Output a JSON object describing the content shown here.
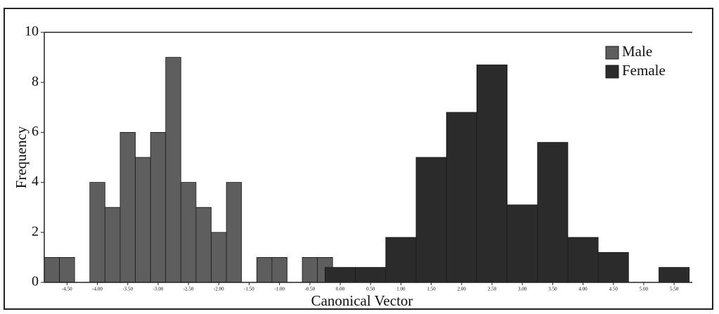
{
  "chart_data": {
    "type": "histogram",
    "xlabel": "Canonical Vector",
    "ylabel": "Frequency",
    "series": [
      {
        "name": "Male",
        "color": "#5e5e5e",
        "bins": [
          -4.875,
          -4.625,
          -4.375,
          -4.125,
          -3.875,
          -3.625,
          -3.375,
          -3.125,
          -2.875,
          -2.625,
          -2.375,
          -2.125,
          -1.875,
          -1.625,
          -1.375,
          -1.125,
          -0.875,
          -0.625,
          -0.375,
          -0.125
        ],
        "values": [
          1,
          1,
          0,
          4,
          3,
          6,
          5,
          6,
          9,
          4,
          3,
          2,
          4,
          0,
          1,
          1,
          0,
          1,
          1
        ]
      },
      {
        "name": "Female",
        "color": "#2b2b2b",
        "bins": [
          -0.25,
          0.25,
          0.75,
          1.25,
          1.75,
          2.25,
          2.75,
          3.25,
          3.75,
          4.25,
          4.75,
          5.25,
          5.75
        ],
        "values": [
          0.6,
          0.6,
          1.8,
          5,
          6.8,
          8.7,
          3.1,
          5.6,
          1.8,
          1.2,
          0,
          0.6
        ]
      }
    ],
    "xlim": [
      -4.875,
      5.8
    ],
    "ylim": [
      0,
      10
    ],
    "xticks": [
      {
        "value": -4.5,
        "label": "-4.50"
      },
      {
        "value": -4,
        "label": "-4.00"
      },
      {
        "value": -3.5,
        "label": "-3.50"
      },
      {
        "value": -3,
        "label": "-3.00"
      },
      {
        "value": -2.5,
        "label": "-2.50"
      },
      {
        "value": -2,
        "label": "-2.00"
      },
      {
        "value": -1.5,
        "label": "-1.50"
      },
      {
        "value": -1,
        "label": "-1.00"
      },
      {
        "value": -0.5,
        "label": "-0.50"
      },
      {
        "value": 0,
        "label": "0.00"
      },
      {
        "value": 0.5,
        "label": "0.50"
      },
      {
        "value": 1,
        "label": "1.00"
      },
      {
        "value": 1.5,
        "label": "1.50"
      },
      {
        "value": 2,
        "label": "2.00"
      },
      {
        "value": 2.5,
        "label": "2.50"
      },
      {
        "value": 3,
        "label": "3.00"
      },
      {
        "value": 3.5,
        "label": "3.50"
      },
      {
        "value": 4,
        "label": "4.00"
      },
      {
        "value": 4.5,
        "label": "4.50"
      },
      {
        "value": 5,
        "label": "5.00"
      },
      {
        "value": 5.5,
        "label": "5.50"
      }
    ],
    "yticks": [
      0,
      2,
      4,
      6,
      8,
      10
    ],
    "legend": "upper right"
  }
}
